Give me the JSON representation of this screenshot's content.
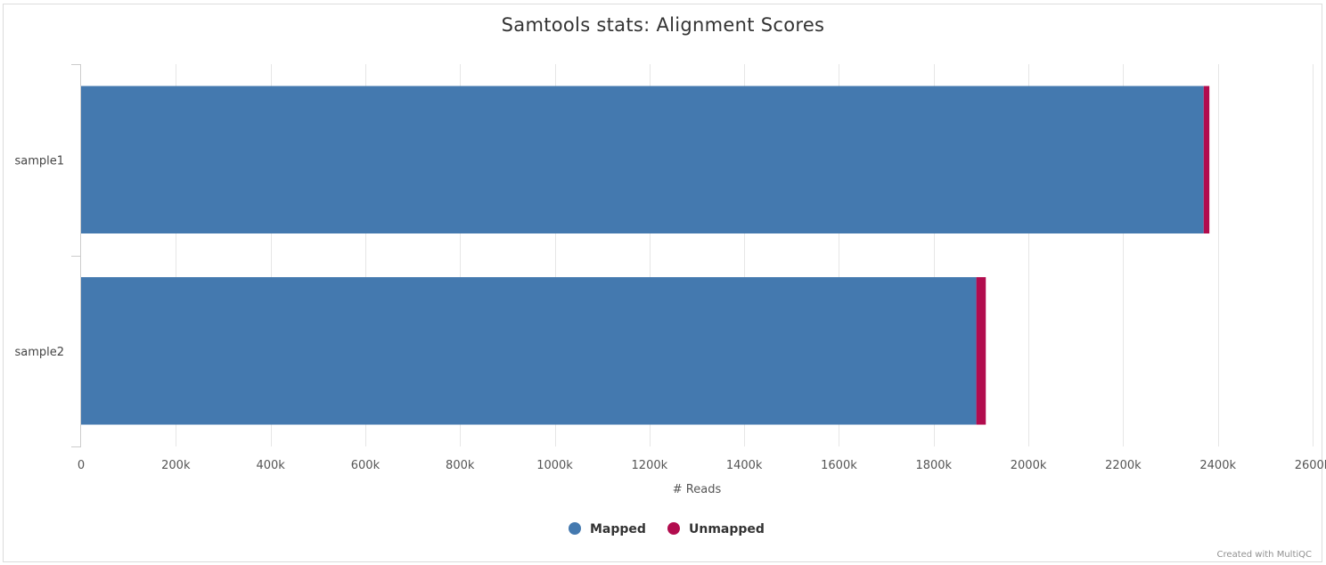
{
  "chart_data": {
    "type": "bar",
    "orientation": "horizontal",
    "stacked": true,
    "title": "Samtools stats: Alignment Scores",
    "xlabel": "# Reads",
    "ylabel": "",
    "categories": [
      "sample1",
      "sample2"
    ],
    "series": [
      {
        "name": "Mapped",
        "color": "#4479AF",
        "values": [
          2370000,
          1890000
        ]
      },
      {
        "name": "Unmapped",
        "color": "#B20C4E",
        "values": [
          12000,
          20000
        ]
      }
    ],
    "xlim": [
      0,
      2600000
    ],
    "xticks": [
      0,
      200000,
      400000,
      600000,
      800000,
      1000000,
      1200000,
      1400000,
      1600000,
      1800000,
      2000000,
      2200000,
      2400000,
      2600000
    ],
    "xtick_labels": [
      "0",
      "200k",
      "400k",
      "600k",
      "800k",
      "1000k",
      "1200k",
      "1400k",
      "1600k",
      "1800k",
      "2000k",
      "2200k",
      "2400k",
      "2600k"
    ],
    "grid": true,
    "legend": "bottom-center"
  },
  "credits": "Created with MultiQC"
}
